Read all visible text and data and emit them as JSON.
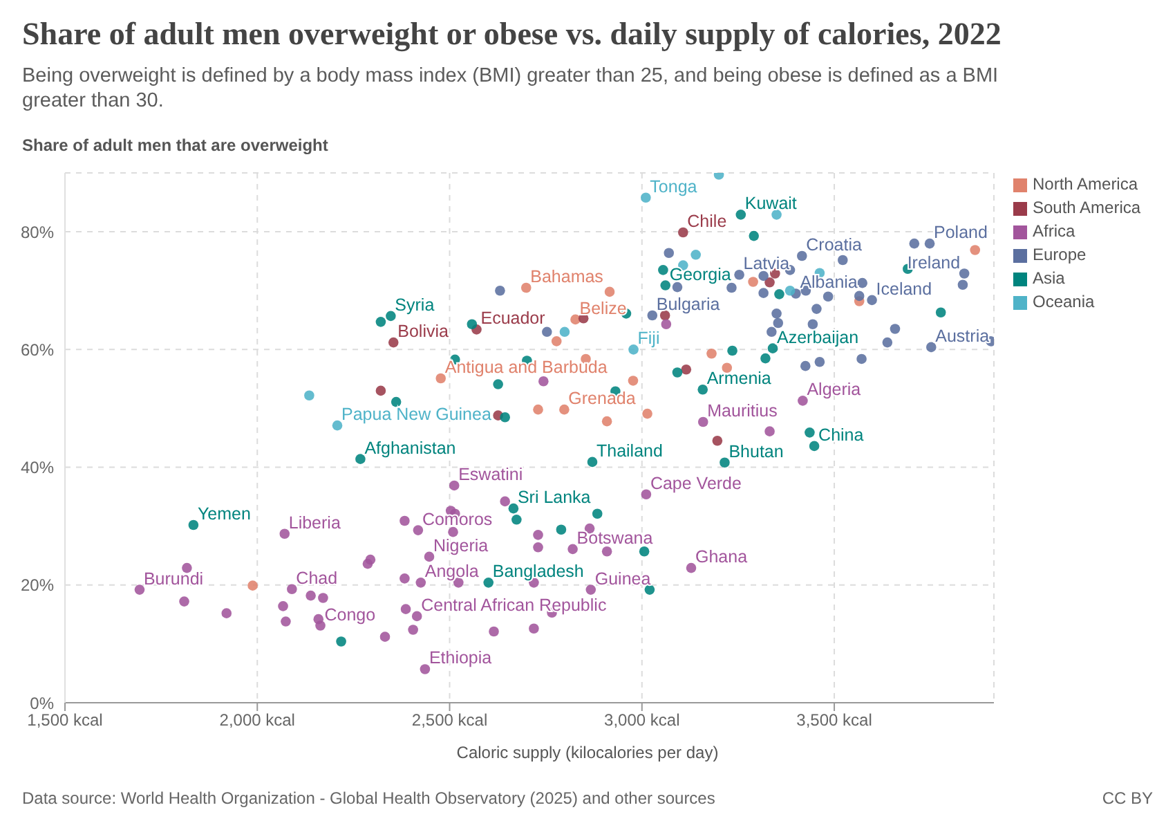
{
  "chart_data": {
    "type": "scatter",
    "title": "Share of adult men overweight or obese vs. daily supply of calories, 2022",
    "subtitle": "Being overweight is defined by a body mass index (BMI) greater than 25, and being obese is defined as a BMI greater than 30.",
    "ylabel": "Share of adult men that are overweight",
    "xlabel": "Caloric supply (kilocalories per day)",
    "xlim": [
      1500,
      3915
    ],
    "ylim": [
      0,
      90
    ],
    "xticks": [
      {
        "value": 1500,
        "label": "1,500 kcal"
      },
      {
        "value": 2000,
        "label": "2,000 kcal"
      },
      {
        "value": 2500,
        "label": "2,500 kcal"
      },
      {
        "value": 3000,
        "label": "3,000 kcal"
      },
      {
        "value": 3500,
        "label": "3,500 kcal"
      }
    ],
    "yticks": [
      {
        "value": 0,
        "label": "0%"
      },
      {
        "value": 20,
        "label": "20%"
      },
      {
        "value": 40,
        "label": "40%"
      },
      {
        "value": 60,
        "label": "60%"
      },
      {
        "value": 80,
        "label": "80%"
      }
    ],
    "grid": true,
    "legend": "top right",
    "marker": "circle",
    "series": [
      {
        "name": "North America",
        "color": "#e0826c",
        "x": [
          1988,
          2699,
          2827,
          2477,
          2798,
          2916,
          2778,
          2854,
          2977,
          2730,
          2909,
          3014,
          3289,
          3866,
          3565,
          3181,
          3221
        ],
        "values": [
          19.9,
          70.5,
          65.1,
          55.1,
          49.8,
          69.8,
          61.4,
          58.4,
          54.7,
          49.8,
          47.8,
          49.1,
          71.5,
          76.9,
          68.2,
          59.3,
          56.9
        ]
      },
      {
        "name": "South America",
        "color": "#9a3b4a",
        "x": [
          3107,
          2354,
          2570,
          2848,
          3060,
          2321,
          2626,
          3332,
          3346,
          3115,
          3196
        ],
        "values": [
          79.9,
          61.2,
          63.4,
          65.3,
          65.8,
          53.0,
          48.8,
          71.4,
          72.9,
          56.6,
          44.5
        ]
      },
      {
        "name": "Africa",
        "color": "#a2559c",
        "x": [
          3418,
          3159,
          3011,
          2512,
          2418,
          2447,
          2425,
          2415,
          2436,
          2820,
          2867,
          3128,
          2071,
          1694,
          2090,
          2164,
          1817,
          1810,
          1920,
          2067,
          2074,
          2139,
          2171,
          2159,
          2287,
          2294,
          2332,
          2383,
          2509,
          2503,
          2514,
          2644,
          2730,
          2730,
          2864,
          2909,
          2383,
          2523,
          2719,
          2386,
          2405,
          2615,
          2719,
          2766,
          3332,
          2744,
          3063
        ],
        "values": [
          51.3,
          47.7,
          35.4,
          36.9,
          29.3,
          24.8,
          20.4,
          14.7,
          5.7,
          26.1,
          19.2,
          22.9,
          28.7,
          19.2,
          19.3,
          13.1,
          22.9,
          17.2,
          15.2,
          16.4,
          13.8,
          18.2,
          17.8,
          14.2,
          23.6,
          24.3,
          11.2,
          30.9,
          29.0,
          32.6,
          32.1,
          34.2,
          28.5,
          26.4,
          29.6,
          25.7,
          21.1,
          20.4,
          20.4,
          15.9,
          12.4,
          12.1,
          12.6,
          15.3,
          46.1,
          54.6,
          64.3
        ]
      },
      {
        "name": "Europe",
        "color": "#5b6f9f",
        "x": [
          3748,
          3708,
          3416,
          3253,
          3400,
          3598,
          3838,
          3834,
          3752,
          3907,
          3027,
          2631,
          2753,
          3070,
          3092,
          3233,
          3316,
          3316,
          3385,
          3426,
          3484,
          3522,
          3573,
          3565,
          3454,
          3350,
          3354,
          3444,
          3337,
          3658,
          3638,
          3571,
          3462,
          3425
        ],
        "values": [
          78.0,
          78.0,
          75.9,
          72.7,
          69.5,
          68.4,
          72.9,
          71.0,
          60.4,
          61.4,
          65.8,
          70.0,
          63.0,
          76.4,
          70.6,
          70.5,
          72.5,
          69.6,
          73.5,
          70.0,
          69.0,
          75.2,
          71.3,
          69.1,
          66.9,
          66.1,
          64.5,
          64.3,
          63.0,
          63.5,
          61.2,
          58.4,
          57.9,
          57.2
        ]
      },
      {
        "name": "Asia",
        "color": "#00847e",
        "x": [
          3257,
          3061,
          3055,
          2347,
          2321,
          3158,
          3340,
          2268,
          1834,
          2871,
          3215,
          3448,
          3436,
          2666,
          2674,
          2601,
          2218,
          2884,
          2790,
          3006,
          3020,
          2626,
          2644,
          2361,
          2558,
          2959,
          3092,
          3291,
          3357,
          3777,
          3235,
          3321,
          3691,
          2514,
          2701,
          2931
        ],
        "values": [
          82.9,
          70.9,
          73.5,
          65.7,
          64.7,
          53.2,
          60.2,
          41.4,
          30.2,
          40.9,
          40.8,
          43.6,
          45.9,
          33.0,
          31.1,
          20.4,
          10.4,
          32.1,
          29.4,
          25.7,
          19.2,
          54.1,
          48.5,
          51.1,
          64.3,
          66.1,
          56.1,
          79.3,
          69.4,
          66.3,
          59.8,
          58.5,
          73.7,
          58.3,
          58.1,
          52.9
        ]
      },
      {
        "name": "Oceania",
        "color": "#4fb3c8",
        "x": [
          3010,
          2978,
          2208,
          2135,
          2799,
          3200,
          3350,
          3140,
          3107,
          3462,
          3385
        ],
        "values": [
          85.8,
          60.0,
          47.1,
          52.2,
          63.0,
          89.7,
          82.9,
          76.1,
          74.3,
          73.0,
          70.0
        ]
      }
    ],
    "annotations": [
      {
        "text": "Tonga",
        "x": 3010,
        "y": 85.8
      },
      {
        "text": "Kuwait",
        "x": 3257,
        "y": 82.9
      },
      {
        "text": "Chile",
        "x": 3107,
        "y": 79.9
      },
      {
        "text": "Poland",
        "x": 3748,
        "y": 78.0
      },
      {
        "text": "Croatia",
        "x": 3416,
        "y": 75.9
      },
      {
        "text": "Ireland",
        "x": 3838,
        "y": 72.9
      },
      {
        "text": "Latvia",
        "x": 3253,
        "y": 72.7
      },
      {
        "text": "Georgia",
        "x": 3061,
        "y": 70.9
      },
      {
        "text": "Albania",
        "x": 3400,
        "y": 69.5
      },
      {
        "text": "Iceland",
        "x": 3598,
        "y": 68.4
      },
      {
        "text": "Bahamas",
        "x": 2699,
        "y": 70.5
      },
      {
        "text": "Syria",
        "x": 2347,
        "y": 65.7
      },
      {
        "text": "Belize",
        "x": 2827,
        "y": 65.1
      },
      {
        "text": "Bulgaria",
        "x": 3027,
        "y": 65.8
      },
      {
        "text": "Ecuador",
        "x": 2570,
        "y": 63.4
      },
      {
        "text": "Bolivia",
        "x": 2354,
        "y": 61.2
      },
      {
        "text": "Fiji",
        "x": 2978,
        "y": 60.0
      },
      {
        "text": "Azerbaijan",
        "x": 3340,
        "y": 60.2
      },
      {
        "text": "Austria",
        "x": 3752,
        "y": 60.4
      },
      {
        "text": "Antigua and Barbuda",
        "x": 2477,
        "y": 55.1
      },
      {
        "text": "Armenia",
        "x": 3158,
        "y": 53.2
      },
      {
        "text": "Algeria",
        "x": 3418,
        "y": 51.3
      },
      {
        "text": "Grenada",
        "x": 2798,
        "y": 49.8
      },
      {
        "text": "Mauritius",
        "x": 3159,
        "y": 47.7
      },
      {
        "text": "Papua New Guinea",
        "x": 2208,
        "y": 47.1
      },
      {
        "text": "Afghanistan",
        "x": 2268,
        "y": 41.4
      },
      {
        "text": "Thailand",
        "x": 2871,
        "y": 40.9
      },
      {
        "text": "Bhutan",
        "x": 3215,
        "y": 40.8
      },
      {
        "text": "China",
        "x": 3448,
        "y": 43.6
      },
      {
        "text": "Eswatini",
        "x": 2512,
        "y": 36.9
      },
      {
        "text": "Cape Verde",
        "x": 3011,
        "y": 35.4
      },
      {
        "text": "Sri Lanka",
        "x": 2666,
        "y": 33.0
      },
      {
        "text": "Yemen",
        "x": 1834,
        "y": 30.2
      },
      {
        "text": "Liberia",
        "x": 2071,
        "y": 28.7
      },
      {
        "text": "Comoros",
        "x": 2418,
        "y": 29.3
      },
      {
        "text": "Botswana",
        "x": 2820,
        "y": 26.1
      },
      {
        "text": "Nigeria",
        "x": 2447,
        "y": 24.8
      },
      {
        "text": "Ghana",
        "x": 3128,
        "y": 22.9
      },
      {
        "text": "Burundi",
        "x": 1694,
        "y": 19.2
      },
      {
        "text": "Chad",
        "x": 2090,
        "y": 19.3
      },
      {
        "text": "Angola",
        "x": 2425,
        "y": 20.4
      },
      {
        "text": "Bangladesh",
        "x": 2601,
        "y": 20.4
      },
      {
        "text": "Guinea",
        "x": 2867,
        "y": 19.2
      },
      {
        "text": "Congo",
        "x": 2164,
        "y": 13.1
      },
      {
        "text": "Central African Republic",
        "x": 2415,
        "y": 14.7
      },
      {
        "text": "Ethiopia",
        "x": 2436,
        "y": 5.7
      },
      "Data source: World Health Organization - Global Health Observatory (2025) and other sources",
      "CC BY"
    ]
  }
}
